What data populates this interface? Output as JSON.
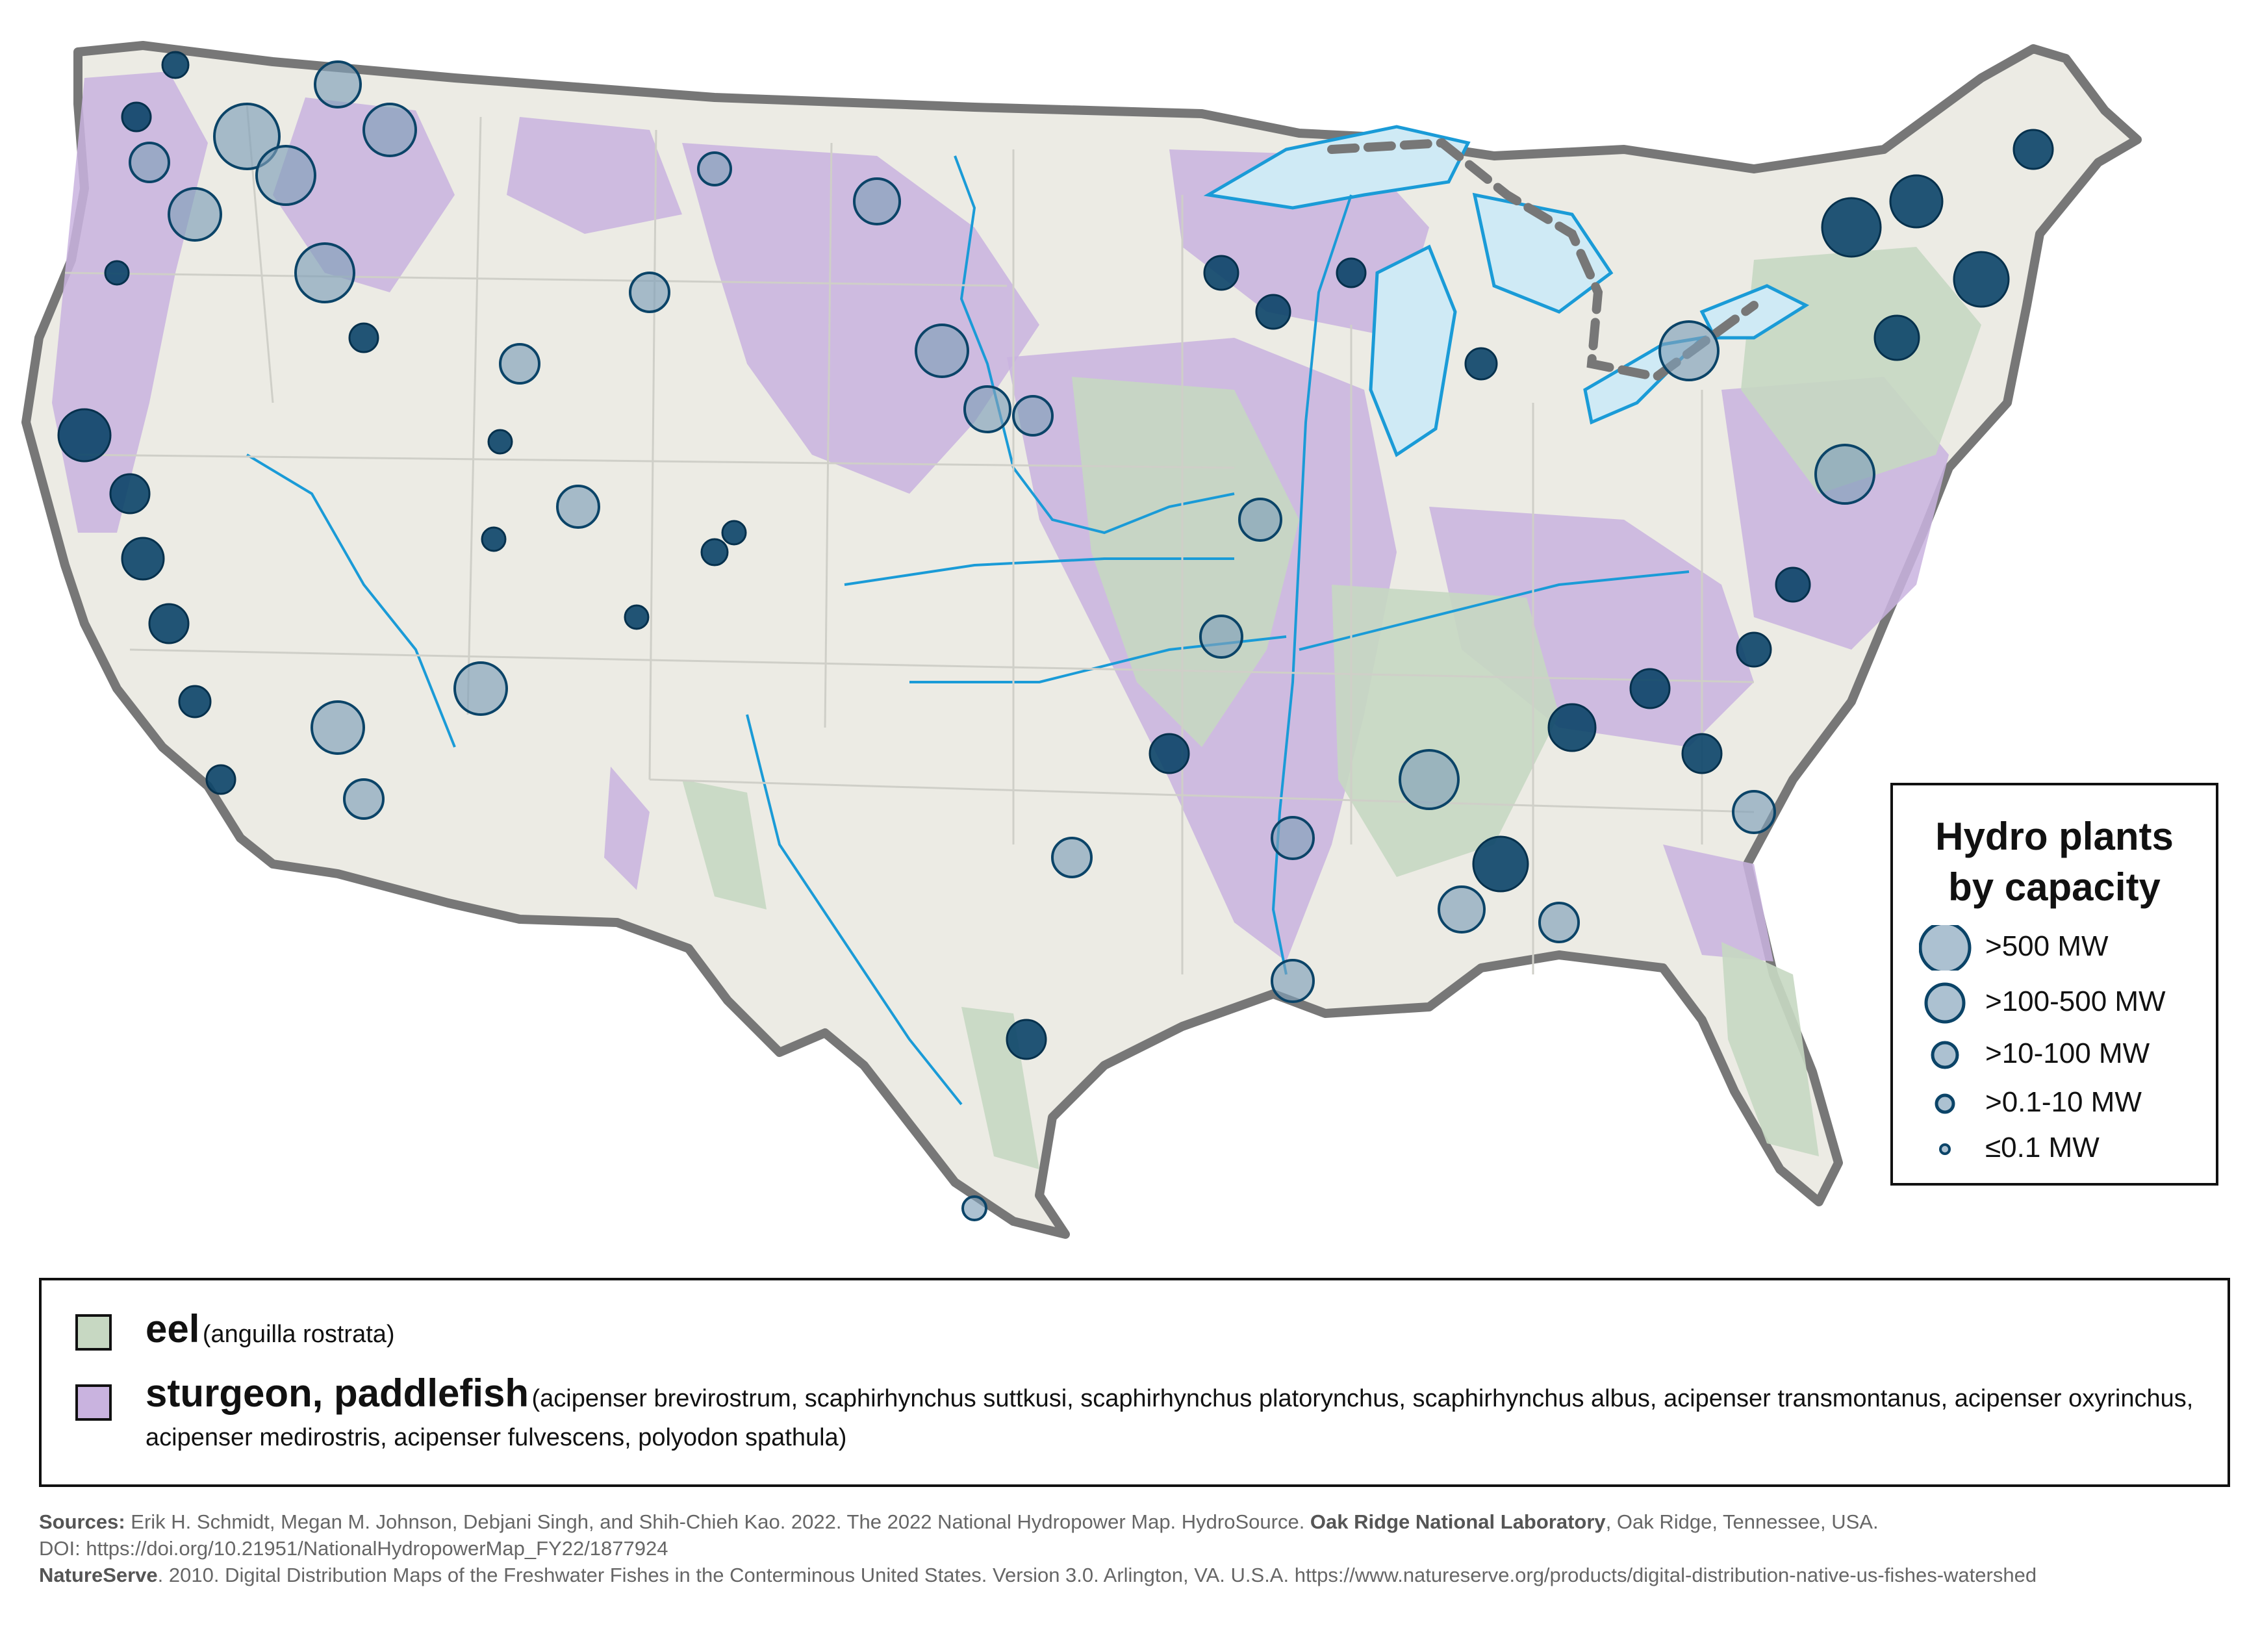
{
  "colors": {
    "eel": "#c7d8c2",
    "sturgeon": "#c9b3df",
    "plant_fill": "#7f9fb8",
    "plant_stroke": "#0b4468",
    "water": "#cfeaf5",
    "river": "#1a9bd7",
    "border": "#777777"
  },
  "capacity_legend": {
    "title_line1": "Hydro plants",
    "title_line2": "by capacity",
    "items": [
      {
        "label": ">500 MW"
      },
      {
        "label": ">100-500 MW"
      },
      {
        "label": ">10-100 MW"
      },
      {
        "label": ">0.1-10 MW"
      },
      {
        "label": "≤0.1 MW"
      }
    ]
  },
  "species_legend": {
    "eel": {
      "name": "eel",
      "scientific": "(anguilla rostrata)"
    },
    "sturgeon": {
      "name": "sturgeon, paddlefish",
      "scientific": "(acipenser brevirostrum, scaphirhynchus suttkusi, scaphirhynchus platorynchus, scaphirhynchus albus, acipenser transmontanus, acipenser oxyrinchus, acipenser medirostris, acipenser fulvescens, polyodon spathula)"
    }
  },
  "sources": {
    "label": "Sources:",
    "line1_text": " Erik H. Schmidt, Megan M. Johnson, Debjani Singh, and Shih-Chieh Kao. 2022. The 2022 National Hydropower Map. HydroSource. ",
    "line1_org": "Oak Ridge National Laboratory",
    "line1_end": ", Oak Ridge, Tennessee, USA.",
    "line2": "DOI: https://doi.org/10.21951/NationalHydropowerMap_FY22/1877924",
    "line3_org": "NatureServe",
    "line3_text": ". 2010. Digital Distribution Maps of the Freshwater Fishes in the Conterminous United States. Version 3.0. Arlington, VA. U.S.A. https://www.natureserve.org/products/digital-distribution-native-us-fishes-watershed"
  }
}
